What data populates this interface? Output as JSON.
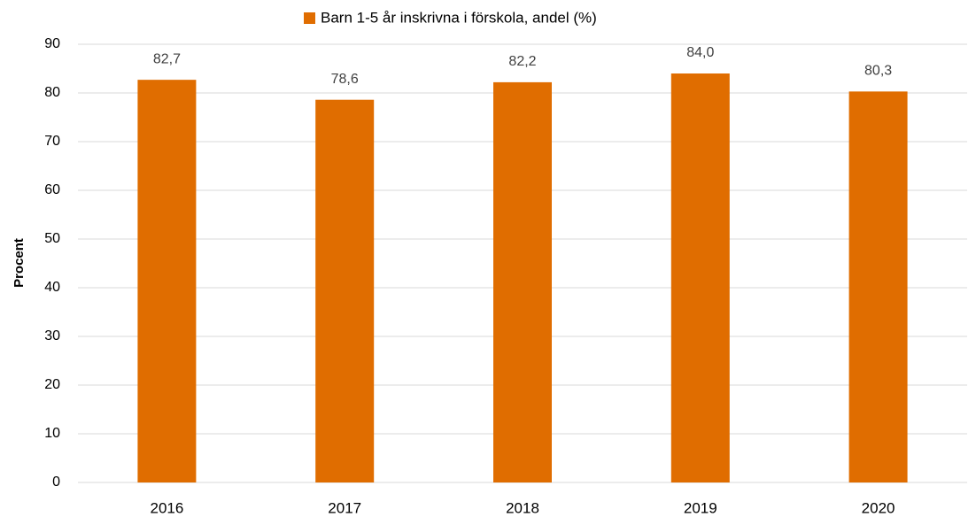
{
  "chart_data": {
    "type": "bar",
    "y_label": "Procent",
    "categories": [
      "2016",
      "2017",
      "2018",
      "2019",
      "2020"
    ],
    "series": [
      {
        "name": "Barn 1-5 år inskrivna i förskola, andel (%)",
        "color": "#e06d00",
        "values": [
          82.7,
          78.6,
          82.2,
          84.0,
          80.3
        ],
        "value_labels": [
          "82,7",
          "78,6",
          "82,2",
          "84,0",
          "80,3"
        ]
      }
    ],
    "ylim": [
      0,
      90
    ],
    "yticks": [
      0,
      10,
      20,
      30,
      40,
      50,
      60,
      70,
      80,
      90
    ],
    "grid": true,
    "legend": "top"
  }
}
